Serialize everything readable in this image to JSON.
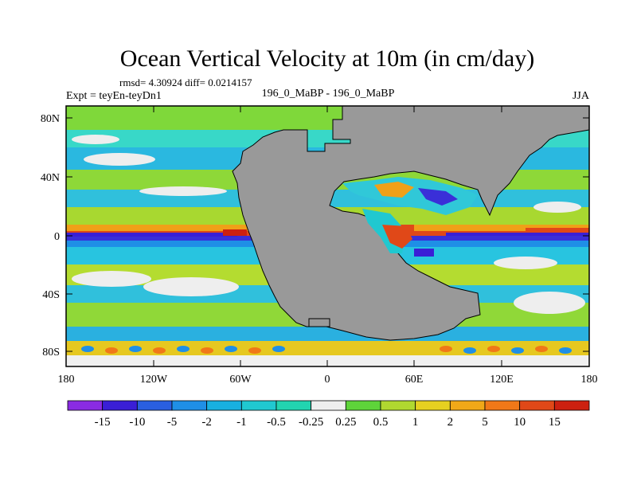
{
  "title": "Ocean Vertical Velocity at 10m (in cm/day)",
  "stats_line": "rmsd= 4.30924  diff= 0.0214157",
  "left_label": "Expt = teyEn-teyDn1",
  "center_label": "196_0_MaBP - 196_0_MaBP",
  "season_label": "JJA",
  "lat_ticks": [
    "80N",
    "40N",
    "0",
    "40S",
    "80S"
  ],
  "lon_ticks": [
    "180",
    "120W",
    "60W",
    "0",
    "60E",
    "120E",
    "180"
  ],
  "colorbar": {
    "labels": [
      "-15",
      "-10",
      "-5",
      "-2",
      "-1",
      "-0.5",
      "-0.25",
      "0.25",
      "0.5",
      "1",
      "2",
      "5",
      "10",
      "15"
    ],
    "colors": [
      "#8a2be2",
      "#3a1fd6",
      "#2a5fe0",
      "#1f8fe6",
      "#18b0e0",
      "#20c8d0",
      "#22d4b0",
      "#eeeeee",
      "#5ed43a",
      "#b0d830",
      "#e6d020",
      "#f0a818",
      "#f07818",
      "#e04818",
      "#cc2010"
    ]
  },
  "colors": {
    "land": "#999999",
    "background": "#ffffff"
  }
}
